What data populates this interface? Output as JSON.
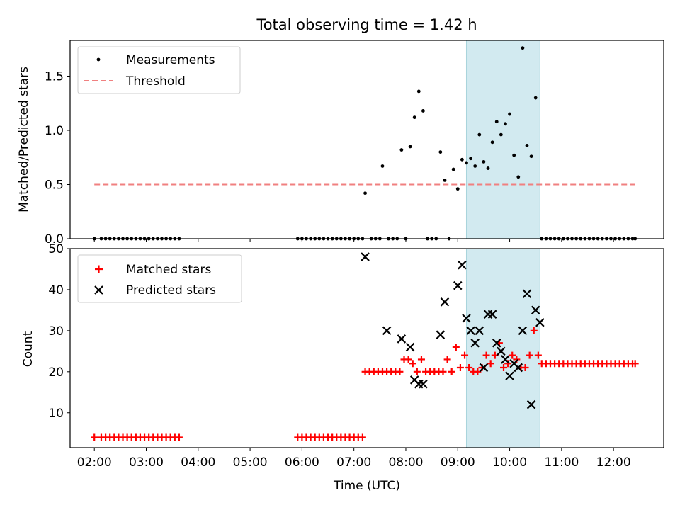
{
  "chart_data": [
    {
      "type": "scatter",
      "title": "Total observing time = 1.42 h",
      "ylabel": "Matched/Predicted stars",
      "ylim": [
        0,
        1.83
      ],
      "yticks": [
        "0.0",
        "0.5",
        "1.0",
        "1.5"
      ],
      "grid": false,
      "legend_position": "top-left",
      "legend": [
        "Measurements",
        "Threshold"
      ],
      "threshold": {
        "name": "Threshold",
        "value": 0.5,
        "x_start": "02:00",
        "x_end": "12:25",
        "color": "#f08080"
      },
      "highlight_band": {
        "x_start": "09:10",
        "x_end": "10:35",
        "color": "#d2eaf0"
      },
      "series": [
        {
          "name": "Measurements",
          "color": "#000000",
          "x": [
            "02:00",
            "02:08",
            "02:13",
            "02:18",
            "02:23",
            "02:28",
            "02:33",
            "02:38",
            "02:43",
            "02:48",
            "02:53",
            "02:58",
            "03:03",
            "03:08",
            "03:13",
            "03:18",
            "03:23",
            "03:28",
            "03:33",
            "03:38",
            "05:55",
            "06:00",
            "06:05",
            "06:10",
            "06:15",
            "06:20",
            "06:25",
            "06:30",
            "06:35",
            "06:40",
            "06:45",
            "06:50",
            "06:55",
            "07:00",
            "07:05",
            "07:10",
            "07:13",
            "07:20",
            "07:25",
            "07:30",
            "07:33",
            "07:40",
            "07:45",
            "07:50",
            "07:55",
            "08:00",
            "08:05",
            "08:10",
            "08:15",
            "08:20",
            "08:25",
            "08:30",
            "08:35",
            "08:40",
            "08:45",
            "08:50",
            "08:55",
            "09:00",
            "09:05",
            "09:10",
            "09:15",
            "09:20",
            "09:25",
            "09:30",
            "09:35",
            "09:40",
            "09:45",
            "09:50",
            "09:55",
            "10:00",
            "10:05",
            "10:10",
            "10:15",
            "10:20",
            "10:25",
            "10:30",
            "10:37",
            "10:42",
            "10:47",
            "10:52",
            "10:57",
            "11:02",
            "11:07",
            "11:12",
            "11:17",
            "11:22",
            "11:27",
            "11:32",
            "11:37",
            "11:42",
            "11:47",
            "11:52",
            "11:57",
            "12:02",
            "12:07",
            "12:12",
            "12:17",
            "12:22",
            "12:25"
          ],
          "y": [
            0,
            0,
            0,
            0,
            0,
            0,
            0,
            0,
            0,
            0,
            0,
            0,
            0,
            0,
            0,
            0,
            0,
            0,
            0,
            0,
            0,
            0,
            0,
            0,
            0,
            0,
            0,
            0,
            0,
            0,
            0,
            0,
            0,
            0,
            0,
            0,
            0.42,
            0,
            0,
            0,
            0.67,
            0,
            0,
            0,
            0.82,
            0,
            0.85,
            1.12,
            1.36,
            1.18,
            0,
            0,
            0,
            0.8,
            0.54,
            0,
            0.64,
            0.46,
            0.73,
            0.7,
            0.74,
            0.67,
            0.96,
            0.71,
            0.65,
            0.89,
            1.08,
            0.96,
            1.06,
            1.15,
            0.77,
            0.57,
            1.76,
            0.86,
            0.76,
            1.3,
            0,
            0,
            0,
            0,
            0,
            0,
            0,
            0,
            0,
            0,
            0,
            0,
            0,
            0,
            0,
            0,
            0,
            0,
            0,
            0,
            0,
            0,
            0
          ]
        }
      ]
    },
    {
      "type": "scatter",
      "xlabel": "Time (UTC)",
      "ylabel": "Count",
      "ylim": [
        1.5,
        50
      ],
      "yticks": [
        "10",
        "20",
        "30",
        "40",
        "50"
      ],
      "xticks": [
        "02:00",
        "03:00",
        "04:00",
        "05:00",
        "06:00",
        "07:00",
        "08:00",
        "09:00",
        "10:00",
        "11:00",
        "12:00"
      ],
      "xlim": [
        "01:32",
        "12:58"
      ],
      "grid": false,
      "legend_position": "top-left",
      "legend": [
        "Matched stars",
        "Predicted stars"
      ],
      "highlight_band": {
        "x_start": "09:10",
        "x_end": "10:35",
        "color": "#d2eaf0"
      },
      "series": [
        {
          "name": "Matched stars",
          "color": "#ff0000",
          "marker": "+",
          "x": [
            "02:00",
            "02:08",
            "02:13",
            "02:18",
            "02:23",
            "02:28",
            "02:33",
            "02:38",
            "02:43",
            "02:48",
            "02:53",
            "02:58",
            "03:03",
            "03:08",
            "03:13",
            "03:18",
            "03:23",
            "03:28",
            "03:33",
            "03:38",
            "05:55",
            "06:00",
            "06:05",
            "06:10",
            "06:15",
            "06:20",
            "06:25",
            "06:30",
            "06:35",
            "06:40",
            "06:45",
            "06:50",
            "06:55",
            "07:00",
            "07:05",
            "07:10",
            "07:13",
            "07:18",
            "07:23",
            "07:28",
            "07:33",
            "07:38",
            "07:43",
            "07:48",
            "07:53",
            "07:58",
            "08:03",
            "08:08",
            "08:13",
            "08:18",
            "08:23",
            "08:28",
            "08:33",
            "08:38",
            "08:43",
            "08:48",
            "08:53",
            "08:58",
            "09:03",
            "09:08",
            "09:13",
            "09:18",
            "09:23",
            "09:28",
            "09:33",
            "09:38",
            "09:43",
            "09:48",
            "09:53",
            "09:58",
            "10:03",
            "10:08",
            "10:13",
            "10:18",
            "10:23",
            "10:28",
            "10:33",
            "10:37",
            "10:42",
            "10:47",
            "10:52",
            "10:57",
            "11:02",
            "11:07",
            "11:12",
            "11:17",
            "11:22",
            "11:27",
            "11:32",
            "11:37",
            "11:42",
            "11:47",
            "11:52",
            "11:57",
            "12:02",
            "12:07",
            "12:12",
            "12:17",
            "12:22",
            "12:25"
          ],
          "y": [
            4,
            4,
            4,
            4,
            4,
            4,
            4,
            4,
            4,
            4,
            4,
            4,
            4,
            4,
            4,
            4,
            4,
            4,
            4,
            4,
            4,
            4,
            4,
            4,
            4,
            4,
            4,
            4,
            4,
            4,
            4,
            4,
            4,
            4,
            4,
            4,
            20,
            20,
            20,
            20,
            20,
            20,
            20,
            20,
            20,
            23,
            23,
            22,
            20,
            23,
            20,
            20,
            20,
            20,
            20,
            23,
            20,
            26,
            21,
            24,
            21,
            20,
            20,
            21,
            24,
            22,
            24,
            27,
            21,
            22,
            24,
            23,
            21,
            21,
            24,
            30,
            24,
            22,
            22,
            22,
            22,
            22,
            22,
            22,
            22,
            22,
            22,
            22,
            22,
            22,
            22,
            22,
            22,
            22,
            22,
            22,
            22,
            22,
            22,
            22
          ]
        },
        {
          "name": "Predicted stars",
          "color": "#000000",
          "marker": "x",
          "x": [
            "07:13",
            "07:38",
            "07:55",
            "08:05",
            "08:10",
            "08:15",
            "08:20",
            "08:40",
            "08:45",
            "09:00",
            "09:05",
            "09:10",
            "09:15",
            "09:20",
            "09:25",
            "09:30",
            "09:35",
            "09:40",
            "09:45",
            "09:50",
            "09:55",
            "10:00",
            "10:05",
            "10:10",
            "10:15",
            "10:20",
            "10:25",
            "10:30",
            "10:35"
          ],
          "y": [
            48,
            30,
            28,
            26,
            18,
            17,
            17,
            29,
            37,
            41,
            46,
            33,
            30,
            27,
            30,
            21,
            34,
            34,
            27,
            25,
            23,
            19,
            22,
            21,
            30,
            39,
            12,
            35,
            32
          ]
        }
      ]
    }
  ]
}
